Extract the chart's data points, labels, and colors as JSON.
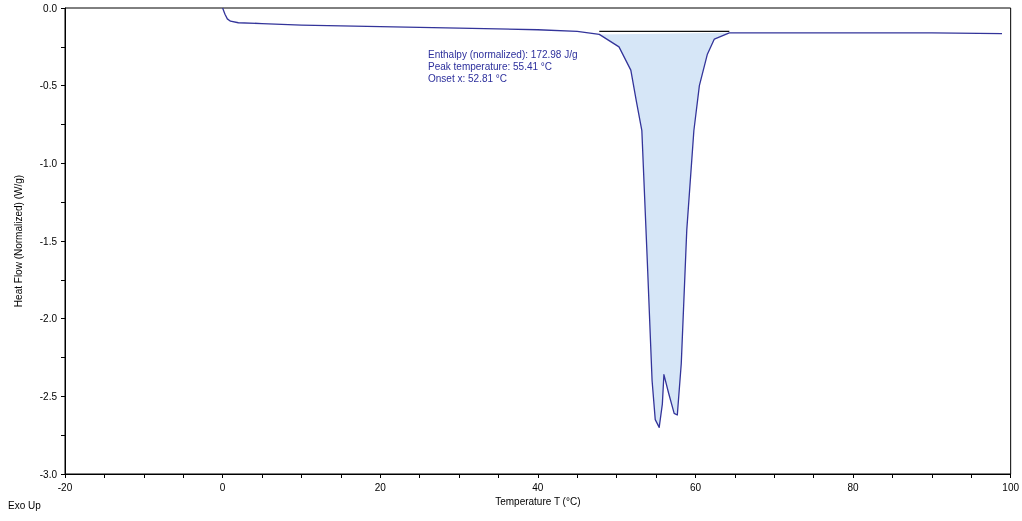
{
  "chart_data": {
    "type": "line",
    "xlabel": "Temperature T (°C)",
    "ylabel": "Heat Flow (Normalized) (W/g)",
    "annotations": [
      "Enthalpy (normalized): 172.98 J/g",
      "Peak temperature: 55.41 °C",
      "Onset x: 52.81 °C",
      "Exo Up"
    ],
    "xlim": [
      -20,
      100
    ],
    "ylim": [
      -3.0,
      0.0
    ],
    "xticks": [
      -20,
      {
        "value": -15,
        "label": null
      },
      {
        "value": -10,
        "label": null
      },
      {
        "value": -5,
        "label": null
      },
      0,
      {
        "value": 5,
        "label": null
      },
      {
        "value": 10,
        "label": null
      },
      {
        "value": 15,
        "label": null
      },
      20,
      {
        "value": 25,
        "label": null
      },
      {
        "value": 30,
        "label": null
      },
      {
        "value": 35,
        "label": null
      },
      40,
      {
        "value": 45,
        "label": null
      },
      {
        "value": 50,
        "label": null
      },
      {
        "value": 55,
        "label": null
      },
      60,
      {
        "value": 65,
        "label": null
      },
      {
        "value": 70,
        "label": null
      },
      {
        "value": 75,
        "label": null
      },
      80,
      {
        "value": 85,
        "label": null
      },
      {
        "value": 90,
        "label": null
      },
      {
        "value": 95,
        "label": null
      },
      100
    ],
    "yticks": [
      {
        "value": -3.0,
        "label": "-3.0"
      },
      {
        "value": -2.75,
        "label": null
      },
      {
        "value": -2.5,
        "label": "-2.5"
      },
      {
        "value": -2.25,
        "label": null
      },
      {
        "value": -2.0,
        "label": "-2.0"
      },
      {
        "value": -1.75,
        "label": null
      },
      {
        "value": -1.5,
        "label": "-1.5"
      },
      {
        "value": -1.25,
        "label": null
      },
      {
        "value": -1.0,
        "label": "-1.0"
      },
      {
        "value": -0.75,
        "label": null
      },
      {
        "value": -0.5,
        "label": "-0.5"
      },
      {
        "value": -0.25,
        "label": null
      },
      {
        "value": 0.0,
        "label": "0.0"
      }
    ],
    "grid": false,
    "marker": "none",
    "line_style": "solid",
    "series": [
      {
        "type": "area",
        "color": "#d6e6f7",
        "x": [
          47.8,
          50.3,
          51.8,
          52.5,
          53.2,
          53.9,
          54.5,
          54.9,
          55.4,
          55.8,
          56.0,
          56.6,
          57.3,
          57.7,
          58.2,
          58.9,
          59.8,
          60.5,
          61.5,
          62.4,
          64.3
        ],
        "values": [
          -0.17,
          -0.25,
          -0.4,
          -0.6,
          -0.79,
          -1.64,
          -2.4,
          -2.65,
          -2.7,
          -2.55,
          -2.36,
          -2.48,
          -2.61,
          -2.62,
          -2.29,
          -1.43,
          -0.79,
          -0.5,
          -0.3,
          -0.2,
          -0.16
        ]
      },
      {
        "type": "line",
        "color": "#111111",
        "x": [
          47.8,
          52.0,
          56.0,
          60.0,
          64.3
        ],
        "values": [
          -0.15,
          -0.15,
          -0.15,
          -0.15,
          -0.15
        ]
      },
      {
        "color": "#33349a",
        "x": [
          0,
          0.3,
          0.6,
          1,
          2,
          5,
          10,
          20,
          30,
          40,
          45,
          47.8,
          50.3,
          51.8,
          52.5,
          53.2,
          53.9,
          54.5,
          54.9,
          55.4,
          55.8,
          56.0,
          56.6,
          57.3,
          57.7,
          58.2,
          58.9,
          59.8,
          60.5,
          61.5,
          62.4,
          64.3,
          70,
          80,
          90,
          98.9
        ],
        "values": [
          0.0,
          -0.04,
          -0.07,
          -0.085,
          -0.095,
          -0.1,
          -0.11,
          -0.12,
          -0.13,
          -0.14,
          -0.15,
          -0.17,
          -0.25,
          -0.4,
          -0.6,
          -0.79,
          -1.64,
          -2.4,
          -2.65,
          -2.7,
          -2.55,
          -2.36,
          -2.48,
          -2.61,
          -2.62,
          -2.29,
          -1.43,
          -0.79,
          -0.5,
          -0.3,
          -0.2,
          -0.16,
          -0.16,
          -0.16,
          -0.16,
          -0.165
        ]
      }
    ]
  }
}
